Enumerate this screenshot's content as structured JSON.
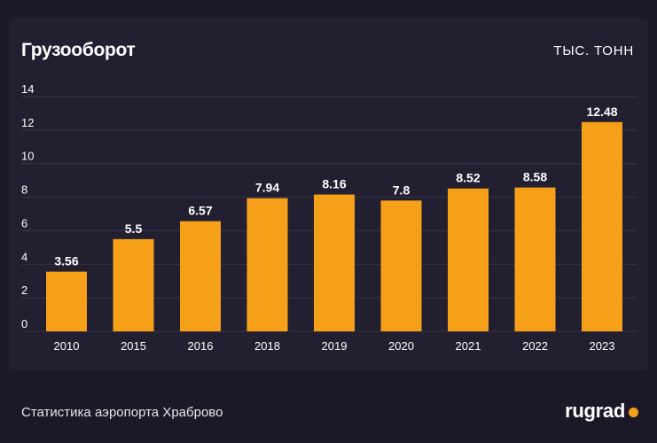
{
  "header": {
    "title": "Грузооборот",
    "unit": "ТЫС. ТОНН"
  },
  "footer": {
    "source": "Статистика аэропорта Храброво",
    "logo_text": "rugrad"
  },
  "colors": {
    "background": "#1b1828",
    "card": "#221f30",
    "bar": "#f6a01a",
    "grid": "#3a3648",
    "accent": "#f6a01a"
  },
  "chart_data": {
    "type": "bar",
    "title": "Грузооборот",
    "ylabel": "ТЫС. ТОНН",
    "xlabel": "",
    "categories": [
      "2010",
      "2015",
      "2016",
      "2018",
      "2019",
      "2020",
      "2021",
      "2022",
      "2023"
    ],
    "values": [
      3.56,
      5.5,
      6.57,
      7.94,
      8.16,
      7.8,
      8.52,
      8.58,
      12.48
    ],
    "ylim": [
      0,
      14
    ],
    "yticks": [
      0,
      2,
      4,
      6,
      8,
      10,
      12,
      14
    ],
    "grid": true,
    "legend": "none"
  }
}
